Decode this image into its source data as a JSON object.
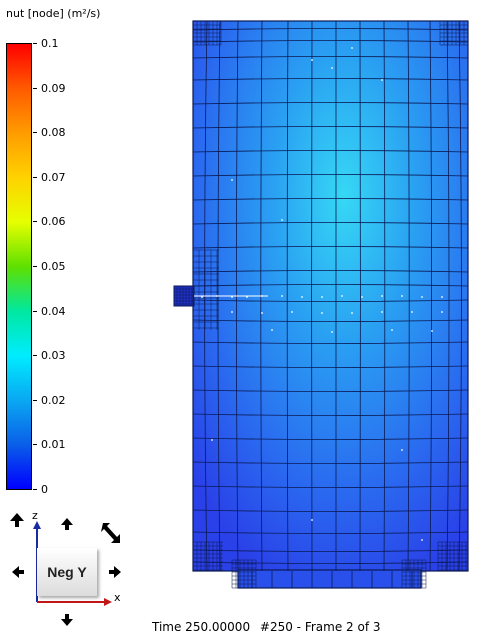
{
  "legend": {
    "title": "nut [node] (m²/s)",
    "ticks": [
      "0.1",
      "0.09",
      "0.08",
      "0.07",
      "0.06",
      "0.05",
      "0.04",
      "0.03",
      "0.02",
      "0.01",
      "0"
    ],
    "colors": {
      "max": "#ff0000",
      "mid": "#5fe000",
      "min": "#0000ff"
    }
  },
  "view": {
    "cube_label": "Neg Y",
    "axis_z": "z",
    "axis_x": "x",
    "nav_icons": [
      "pan-up-left-icon",
      "rotate-up-icon",
      "rotate-diagonal-icon",
      "rotate-left-icon",
      "rotate-right-icon",
      "rotate-down-icon"
    ]
  },
  "status": {
    "time": "Time 250.00000",
    "step": "#250 - Frame 2 of 3"
  },
  "mesh": {
    "field": "nut",
    "background_color": "#2a8cf5",
    "line_color": "#0a1a55"
  }
}
